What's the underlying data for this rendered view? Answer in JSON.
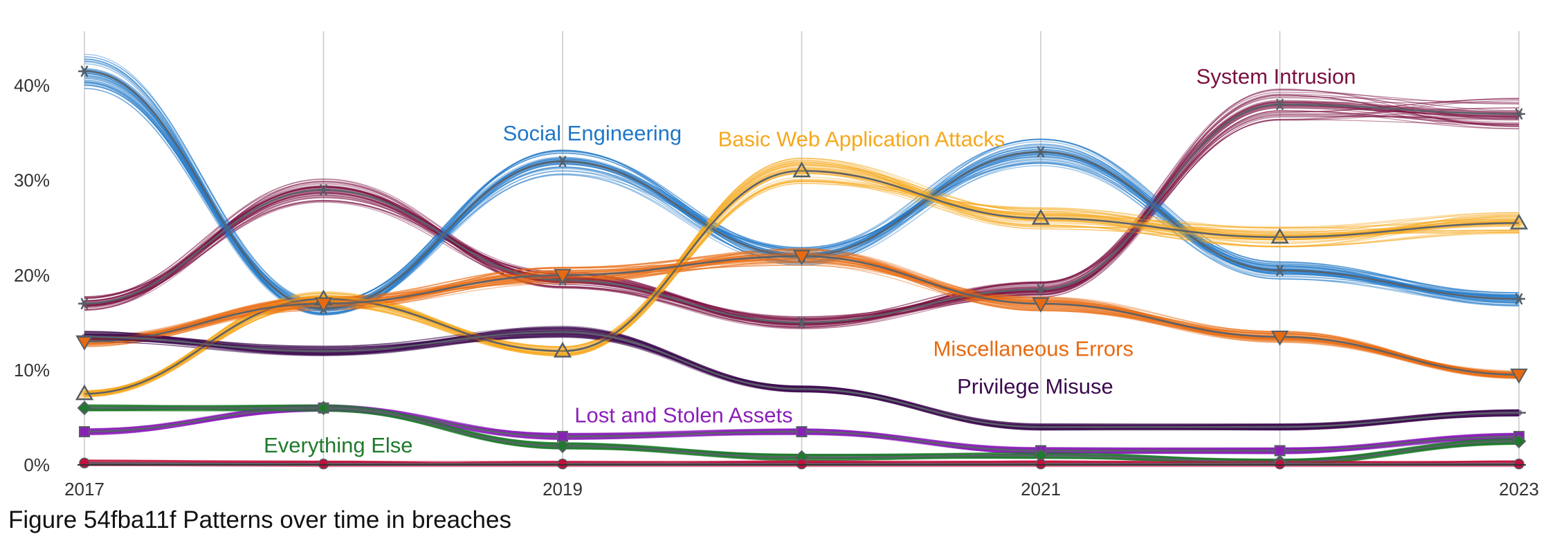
{
  "caption": "Figure 54fba11f Patterns over time in breaches",
  "chart_data": {
    "type": "line",
    "title": "",
    "xlabel": "",
    "ylabel": "",
    "x": [
      2017,
      2018,
      2019,
      2020,
      2021,
      2022,
      2023
    ],
    "x_tick_labels": [
      {
        "x": 2017,
        "label": "2017"
      },
      {
        "x": 2019,
        "label": "2019"
      },
      {
        "x": 2021,
        "label": "2021"
      },
      {
        "x": 2023,
        "label": "2023"
      }
    ],
    "y_ticks": [
      {
        "value": 0,
        "label": "0%"
      },
      {
        "value": 10,
        "label": "10%"
      },
      {
        "value": 20,
        "label": "20%"
      },
      {
        "value": 30,
        "label": "30%"
      },
      {
        "value": 40,
        "label": "40%"
      }
    ],
    "xlim": [
      2017,
      2023
    ],
    "ylim": [
      0,
      45
    ],
    "grid": "vertical lines at each year",
    "legend": "direct labels on lines",
    "series": [
      {
        "name": "System Intrusion",
        "color": "#7a1040",
        "marker": "asterisk",
        "values": [
          17,
          29,
          19.5,
          15,
          18.5,
          38,
          37
        ],
        "label_x": 2021.65,
        "label_y": 40.2
      },
      {
        "name": "Social Engineering",
        "color": "#1f77c8",
        "marker": "asterisk",
        "values": [
          41.5,
          16.5,
          32,
          22,
          33,
          20.5,
          17.5
        ],
        "label_x": 2018.75,
        "label_y": 34.2
      },
      {
        "name": "Basic Web Application Attacks",
        "color": "#f6a81c",
        "marker": "triangle",
        "values": [
          7.5,
          17.5,
          12,
          31,
          26,
          24,
          25.5
        ],
        "label_x": 2019.65,
        "label_y": 33.6
      },
      {
        "name": "Miscellaneous Errors",
        "color": "#e86a10",
        "marker": "triangle-down",
        "values": [
          13,
          17,
          20,
          22,
          17,
          13.5,
          9.5
        ],
        "label_x": 2020.55,
        "label_y": 11.5
      },
      {
        "name": "Privilege Misuse",
        "color": "#3c0a4e",
        "marker": "dash",
        "values": [
          13.5,
          12,
          14,
          8,
          4,
          4,
          5.5
        ],
        "label_x": 2020.65,
        "label_y": 7.5
      },
      {
        "name": "Lost and Stolen Assets",
        "color": "#8a1fb8",
        "marker": "square",
        "values": [
          3.5,
          6,
          3,
          3.5,
          1.5,
          1.5,
          3
        ],
        "label_x": 2019.05,
        "label_y": 4.5
      },
      {
        "name": "Everything Else",
        "color": "#1f7a2c",
        "marker": "diamond",
        "values": [
          6,
          6,
          2,
          0.8,
          1,
          0.3,
          2.5
        ],
        "label_x": 2017.75,
        "label_y": 1.3
      },
      {
        "name": "",
        "color": "#c0103c",
        "marker": "circle",
        "values": [
          0.2,
          0.1,
          0.1,
          0.1,
          0.1,
          0.1,
          0.1
        ],
        "label_x": null,
        "label_y": null
      }
    ]
  }
}
